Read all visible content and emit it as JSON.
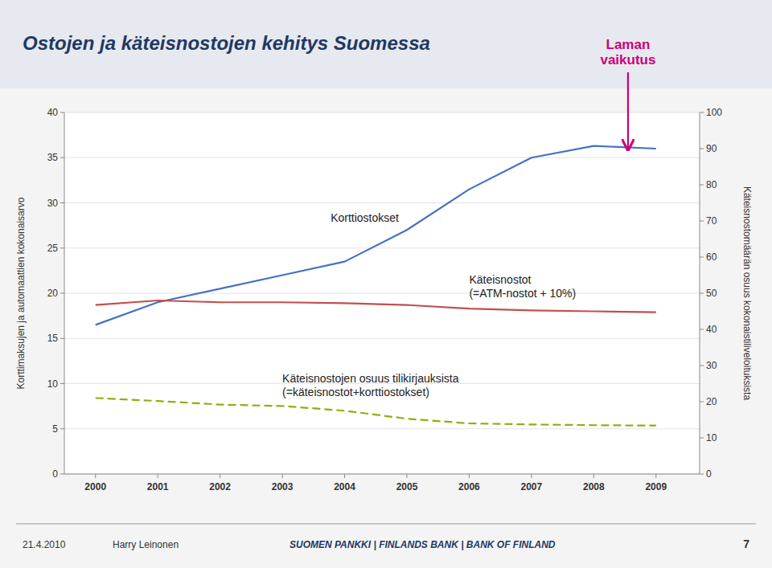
{
  "chart_data": {
    "type": "line",
    "title": "Ostojen ja käteisnostojen kehitys Suomessa",
    "x": [
      2000,
      2001,
      2002,
      2003,
      2004,
      2005,
      2006,
      2007,
      2008,
      2009
    ],
    "series": [
      {
        "name": "Korttiostokset",
        "color": "#4472C4",
        "line_style": "solid",
        "values": [
          16.5,
          19.0,
          20.5,
          22.0,
          23.5,
          27.0,
          31.5,
          35.0,
          36.3,
          36.0
        ]
      },
      {
        "name": "Käteisnostot\n(=ATM-nostot + 10%)",
        "color": "#C0504D",
        "line_style": "solid",
        "values": [
          18.7,
          19.2,
          19.0,
          19.0,
          18.9,
          18.7,
          18.3,
          18.1,
          18.0,
          17.9
        ]
      },
      {
        "name": "Käteisnostojen osuus tilikirjauksista\n(=käteisnostot+korttiostokset)",
        "color": "#8DB012",
        "line_style": "dashed",
        "axis": "y2",
        "values": [
          21.0,
          20.2,
          19.2,
          18.8,
          17.5,
          15.3,
          14.0,
          13.7,
          13.5,
          13.4
        ]
      }
    ],
    "xlim": [
      1999.5,
      2009.7
    ],
    "xticks": [
      2000,
      2001,
      2002,
      2003,
      2004,
      2005,
      2006,
      2007,
      2008,
      2009
    ],
    "ylim": [
      0,
      40
    ],
    "yticks": [
      0,
      5,
      10,
      15,
      20,
      25,
      30,
      35,
      40
    ],
    "ylabel": "Korttimaksujen ja automaattien kokonaisarvo",
    "y2lim": [
      0,
      100
    ],
    "y2ticks": [
      0,
      10,
      20,
      30,
      40,
      50,
      60,
      70,
      80,
      90,
      100
    ],
    "y2label": "Käteisnostomäärän osuus kokonaistiliveloituksista",
    "grid": true,
    "annotations": [
      {
        "text": "Laman\nvaikutus",
        "color": "#CC007A",
        "x": 2008.55,
        "y": 35.6
      }
    ],
    "footer": [
      "21.4.2010",
      "Harry Leinonen",
      "SUOMEN PANKKI | FINLANDS BANK | BANK OF FINLAND",
      "7"
    ]
  }
}
